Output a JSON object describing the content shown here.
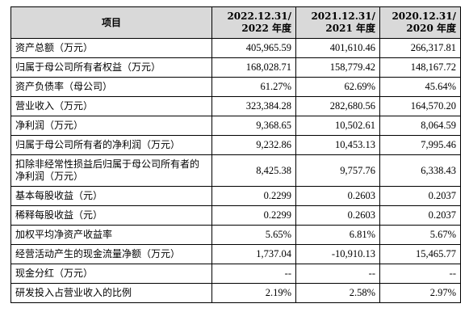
{
  "table": {
    "header": {
      "item": "项目",
      "periods": [
        {
          "line1": "2022.12.31/",
          "line2": "2022 年度"
        },
        {
          "line1": "2021.12.31/",
          "line2": "2021 年度"
        },
        {
          "line1": "2020.12.31/",
          "line2": "2020 年度"
        }
      ]
    },
    "rows": [
      {
        "label": "资产总额（万元）",
        "values": [
          "405,965.59",
          "401,610.46",
          "266,317.81"
        ]
      },
      {
        "label": "归属于母公司所有者权益（万元）",
        "values": [
          "168,028.71",
          "158,779.42",
          "148,167.72"
        ]
      },
      {
        "label": "资产负债率（母公司）",
        "values": [
          "61.27%",
          "62.69%",
          "45.64%"
        ]
      },
      {
        "label": "营业收入（万元）",
        "values": [
          "323,384.28",
          "282,680.56",
          "164,570.20"
        ]
      },
      {
        "label": "净利润（万元）",
        "values": [
          "9,368.65",
          "10,502.61",
          "8,064.59"
        ]
      },
      {
        "label": "归属于母公司所有者的净利润（万元）",
        "values": [
          "9,232.86",
          "10,453.13",
          "7,995.46"
        ]
      },
      {
        "label": "扣除非经常性损益后归属于母公司所有者的净利润（万元）",
        "values": [
          "8,425.38",
          "9,757.76",
          "6,338.43"
        ]
      },
      {
        "label": "基本每股收益（元）",
        "values": [
          "0.2299",
          "0.2603",
          "0.2037"
        ]
      },
      {
        "label": "稀释每股收益（元）",
        "values": [
          "0.2299",
          "0.2603",
          "0.2037"
        ]
      },
      {
        "label": "加权平均净资产收益率",
        "values": [
          "5.65%",
          "6.81%",
          "5.67%"
        ]
      },
      {
        "label": "经营活动产生的现金流量净额（万元）",
        "values": [
          "1,737.04",
          "-10,910.13",
          "15,465.77"
        ]
      },
      {
        "label": "现金分红（万元）",
        "values": [
          "--",
          "--",
          "--"
        ]
      },
      {
        "label": "研发投入占营业收入的比例",
        "values": [
          "2.19%",
          "2.58%",
          "2.97%"
        ]
      }
    ]
  }
}
